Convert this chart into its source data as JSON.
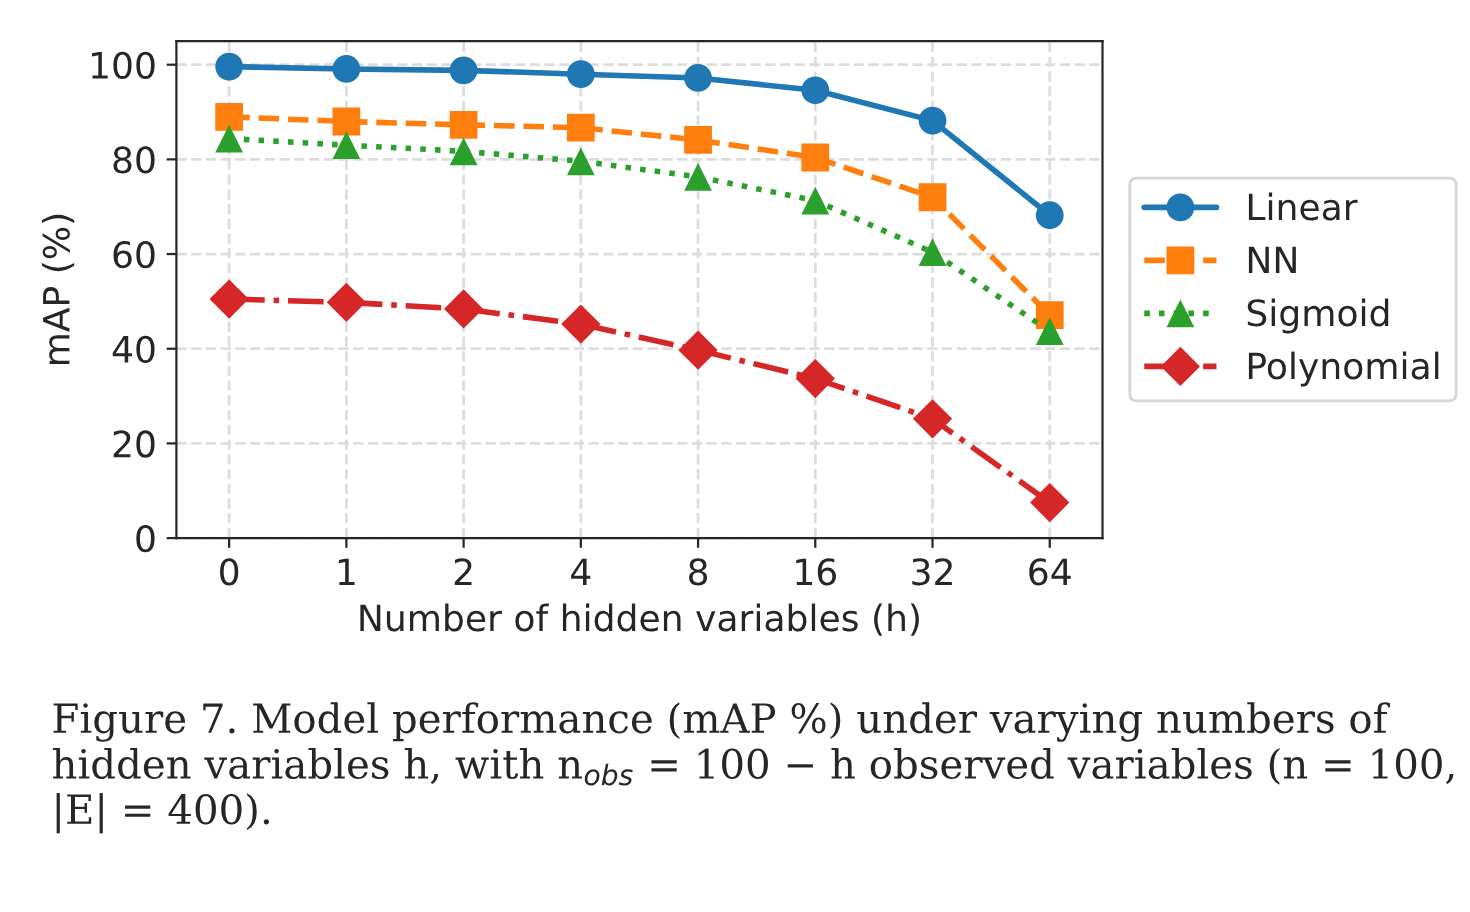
{
  "chart_data": {
    "type": "line",
    "xlabel": "Number of hidden variables (h)",
    "ylabel": "mAP (%)",
    "categories": [
      "0",
      "1",
      "2",
      "4",
      "8",
      "16",
      "32",
      "64"
    ],
    "ylim": [
      0,
      105
    ],
    "yticks": [
      0,
      20,
      40,
      60,
      80,
      100
    ],
    "grid": true,
    "legend": "right",
    "series": [
      {
        "name": "Linear",
        "color": "#1f77b4",
        "marker": "circle",
        "line_style": "solid",
        "values": [
          99.6,
          99.1,
          98.8,
          98,
          97.2,
          94.6,
          88.2,
          68.2
        ]
      },
      {
        "name": "NN",
        "color": "#ff7f0e",
        "marker": "square",
        "line_style": "dashed",
        "values": [
          89,
          88,
          87.3,
          86.7,
          84.1,
          80.4,
          72,
          47.1
        ]
      },
      {
        "name": "Sigmoid",
        "color": "#2ca02c",
        "marker": "triangle",
        "line_style": "dotted",
        "values": [
          84.4,
          83,
          81.7,
          79.6,
          76.3,
          71.3,
          60.4,
          43.7
        ]
      },
      {
        "name": "Polynomial",
        "color": "#d62728",
        "marker": "diamond",
        "line_style": "dashdot",
        "values": [
          50.5,
          49.8,
          48.4,
          45.2,
          39.7,
          33.7,
          25.2,
          7.5
        ]
      }
    ],
    "annotations": [
      "Figure 7. Model performance (mAP %) under varying numbers of hidden variables h, with n$_{obs}$ = 100 − h observed variables (n = 100, |E| = 400)."
    ]
  }
}
